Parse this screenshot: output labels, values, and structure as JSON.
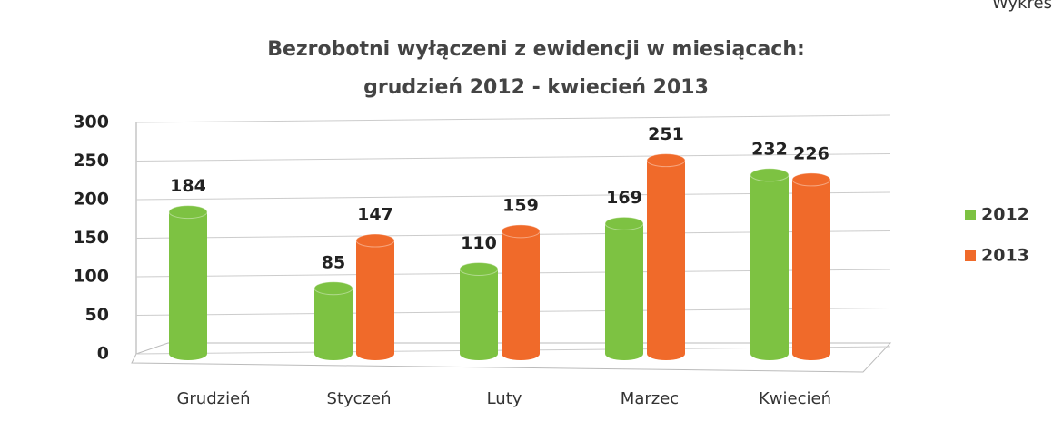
{
  "header": "Wykres",
  "chart_data": {
    "type": "bar",
    "title": [
      "Bezrobotni wyłączeni z ewidencji w miesiącach:",
      "grudzień  2012 - kwiecień 2013"
    ],
    "categories": [
      "Grudzień",
      "Styczeń",
      "Luty",
      "Marzec",
      "Kwiecień"
    ],
    "series": [
      {
        "name": "2012",
        "color": "#7dc242",
        "values": [
          184,
          85,
          110,
          169,
          232
        ]
      },
      {
        "name": "2013",
        "color": "#f06a2a",
        "values": [
          null,
          147,
          159,
          251,
          226
        ]
      }
    ],
    "ylim": [
      0,
      300
    ],
    "yticks": [
      0,
      50,
      100,
      150,
      200,
      250,
      300
    ],
    "grid": true,
    "legend": "right"
  }
}
